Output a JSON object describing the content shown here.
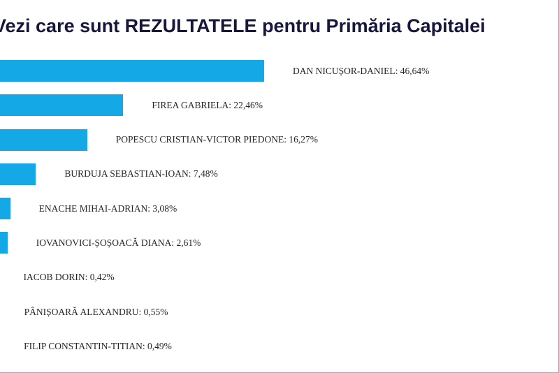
{
  "title": "Vezi care sunt REZULTATELE pentru Primăria Capitalei",
  "chart_data": {
    "type": "bar",
    "orientation": "horizontal",
    "title": "Vezi care sunt REZULTATELE pentru Primăria Capitalei",
    "categories": [
      "DAN NICUȘOR-DANIEL",
      "FIREA GABRIELA",
      "POPESCU CRISTIAN-VICTOR PIEDONE",
      "BURDUJA SEBASTIAN-IOAN",
      "ENACHE MIHAI-ADRIAN",
      "IOVANOVICI-ȘOȘOACĂ DIANA",
      "IACOB DORIN",
      "PÂNIȘOARĂ ALEXANDRU",
      "FILIP CONSTANTIN-TITIAN"
    ],
    "values": [
      46.64,
      22.46,
      16.27,
      7.48,
      3.08,
      2.61,
      0.42,
      0.55,
      0.49
    ],
    "labels": [
      "DAN NICUȘOR-DANIEL: 46,64%",
      "FIREA GABRIELA: 22,46%",
      "POPESCU CRISTIAN-VICTOR PIEDONE: 16,27%",
      "BURDUJA SEBASTIAN-IOAN: 7,48%",
      "ENACHE MIHAI-ADRIAN: 3,08%",
      "IOVANOVICI-ȘOȘOACĂ DIANA: 2,61%",
      "IACOB DORIN: 0,42%",
      "PÂNIȘOARĂ ALEXANDRU: 0,55%",
      "FILIP CONSTANTIN-TITIAN: 0,49%"
    ],
    "value_suffix": "%",
    "bar_color": "#14a9e6",
    "xlim": [
      0,
      50
    ],
    "legend": "none",
    "grid": "off"
  }
}
